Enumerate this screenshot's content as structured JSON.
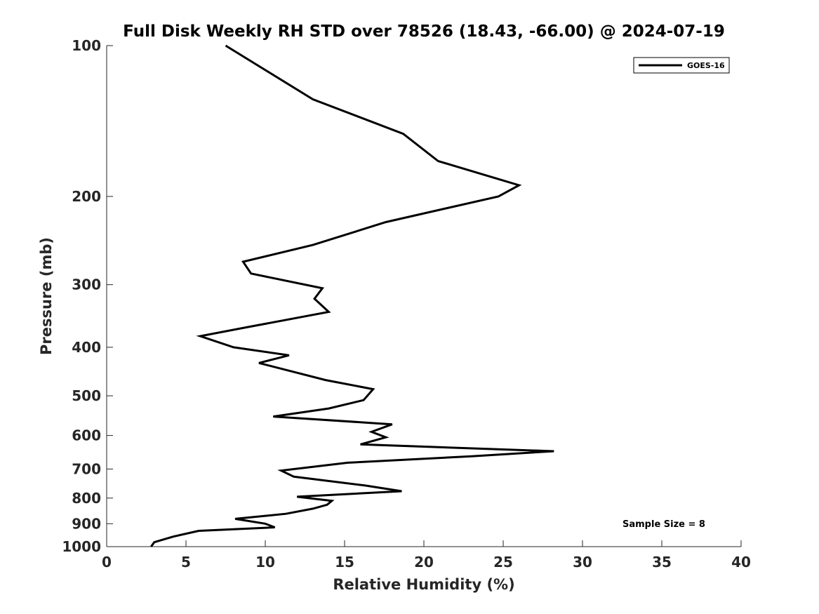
{
  "chart_data": {
    "type": "line",
    "title": "Full Disk Weekly RH STD over 78526 (18.43, -66.00) @ 2024-07-19",
    "xlabel": "Relative Humidity (%)",
    "ylabel": "Pressure (mb)",
    "xlim": [
      0,
      40
    ],
    "ylim": [
      100,
      1000
    ],
    "y_scale": "log",
    "y_reversed": true,
    "x_ticks": [
      0,
      5,
      10,
      15,
      20,
      25,
      30,
      35,
      40
    ],
    "y_ticks": [
      100,
      200,
      300,
      400,
      500,
      600,
      700,
      800,
      900,
      1000
    ],
    "grid": false,
    "legend_position": "top-right",
    "annotation": "Sample Size = 8",
    "series": [
      {
        "name": "GOES-16",
        "color": "#000000",
        "x": [
          7.5,
          13.0,
          18.7,
          20.9,
          26.0,
          24.7,
          17.6,
          13.0,
          8.6,
          9.1,
          13.6,
          13.1,
          14.0,
          8.8,
          5.9,
          8.0,
          11.5,
          9.6,
          13.8,
          16.8,
          16.2,
          14.0,
          10.5,
          18.0,
          16.7,
          17.6,
          16.0,
          28.2,
          23.0,
          15.2,
          11.0,
          11.8,
          16.3,
          18.6,
          12.0,
          14.2,
          13.9,
          13.0,
          11.3,
          8.1,
          10.0,
          10.6,
          5.8,
          4.2,
          3.0,
          2.8
        ],
        "y": [
          100,
          128,
          150,
          170,
          190,
          200,
          225,
          250,
          270,
          285,
          305,
          320,
          340,
          365,
          380,
          400,
          415,
          430,
          465,
          485,
          510,
          530,
          550,
          570,
          590,
          605,
          625,
          645,
          660,
          680,
          705,
          725,
          755,
          775,
          795,
          810,
          825,
          840,
          860,
          880,
          900,
          915,
          930,
          955,
          980,
          1000
        ]
      }
    ]
  }
}
